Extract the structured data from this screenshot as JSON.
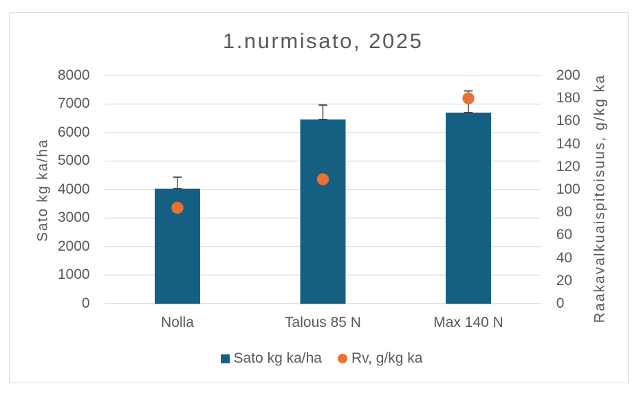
{
  "chart_data": {
    "type": "bar",
    "subtype": "combo-bar-scatter-dual-axis",
    "title": "1.nurmisato, 2025",
    "categories": [
      "Nolla",
      "Talous 85 N",
      "Max 140 N"
    ],
    "series": [
      {
        "name": "Sato kg ka/ha",
        "type": "bar",
        "axis": "left",
        "color": "#156082",
        "values": [
          4030,
          6460,
          6700
        ],
        "error_plus": [
          405,
          505,
          760
        ],
        "error_minus": [
          0,
          0,
          0
        ]
      },
      {
        "name": "Rv, g/kg ka",
        "type": "scatter",
        "axis": "right",
        "color": "#E97132",
        "values": [
          84,
          109,
          180
        ]
      }
    ],
    "left_axis": {
      "label": "Sato kg ka/ha",
      "min": 0,
      "max": 8000,
      "step": 1000,
      "ticks": [
        "0",
        "1000",
        "2000",
        "3000",
        "4000",
        "5000",
        "6000",
        "7000",
        "8000"
      ]
    },
    "right_axis": {
      "label": "Raakavalkuaispitoisuus, g/kg ka",
      "min": 0,
      "max": 200,
      "step": 20,
      "ticks": [
        "0",
        "20",
        "40",
        "60",
        "80",
        "100",
        "120",
        "140",
        "160",
        "180",
        "200"
      ]
    },
    "grid": true,
    "legend_position": "bottom",
    "colors": {
      "text": "#595959",
      "gridline": "#D9D9D9",
      "frame_border": "#D9D9D9",
      "error_bar": "#404040",
      "background": "#FFFFFF"
    }
  }
}
